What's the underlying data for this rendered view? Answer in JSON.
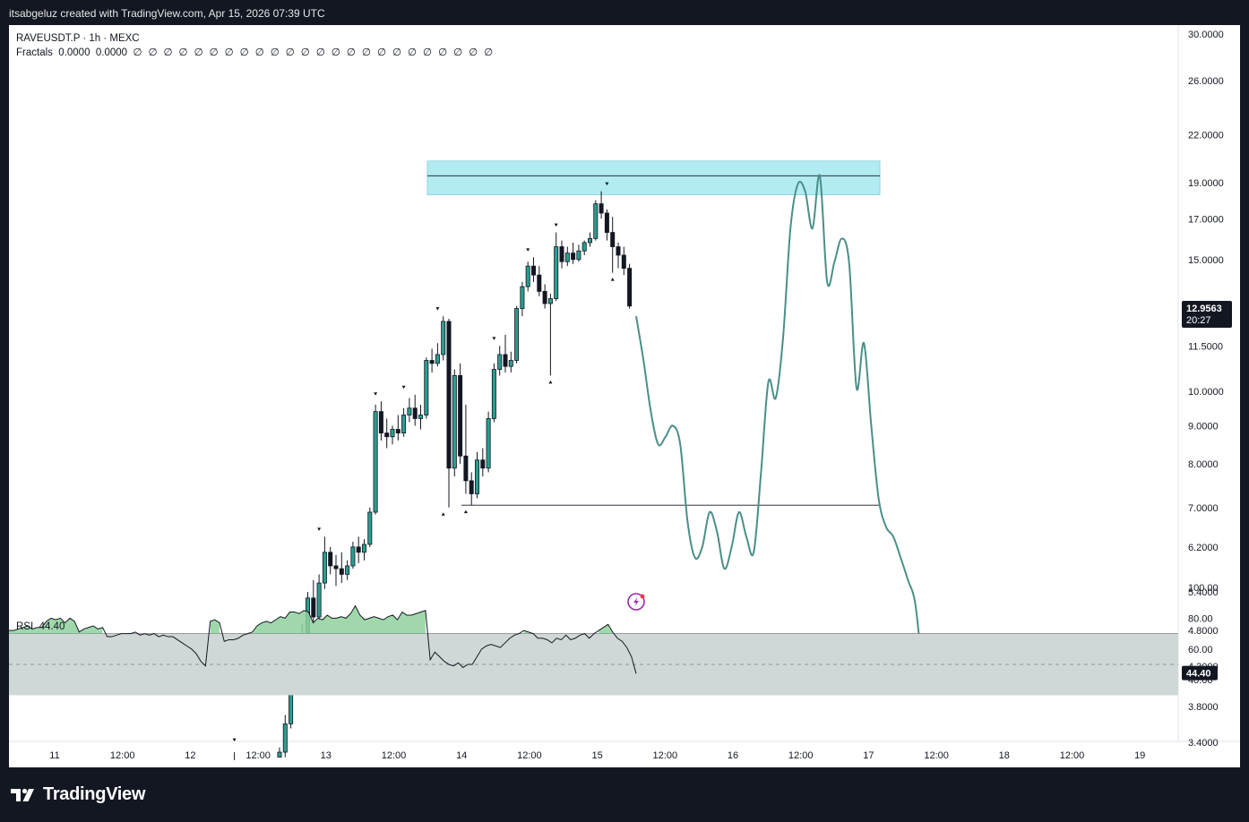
{
  "header": {
    "attribution": "itsabgeluz created with TradingView.com, Apr 15, 2026 07:39 UTC"
  },
  "legend": {
    "symbol": "RAVEUSDT.P · 1h · MEXC",
    "indicator_name": "Fractals",
    "indicator_values": [
      "0.0000",
      "0.0000"
    ],
    "empty_values": [
      "∅",
      "∅",
      "∅",
      "∅",
      "∅",
      "∅",
      "∅",
      "∅",
      "∅",
      "∅",
      "∅",
      "∅",
      "∅",
      "∅",
      "∅",
      "∅",
      "∅",
      "∅",
      "∅",
      "∅",
      "∅",
      "∅",
      "∅",
      "∅"
    ]
  },
  "rsi": {
    "label": "RSI",
    "value": "44.40"
  },
  "price_badge": {
    "price": "12.9563",
    "countdown": "20:27"
  },
  "branding": {
    "logo_text": "TradingView"
  },
  "colors": {
    "bull": "#26a69a",
    "bear": "#131722",
    "candle_fill_up": "#2a9d8f",
    "projection": "#4a8f88",
    "zone_fill": "#b2ebf2",
    "rsi_band": "#cfd8d6",
    "rsi_fill": "#8fd19e",
    "line": "#131722"
  },
  "chart_data": [
    {
      "type": "candlestick",
      "scale": "log",
      "y_ticks": [
        "30.0000",
        "26.0000",
        "22.0000",
        "19.0000",
        "17.0000",
        "15.0000",
        "11.5000",
        "10.0000",
        "9.0000",
        "8.0000",
        "7.0000",
        "6.2000",
        "5.4000",
        "4.8000",
        "4.3000",
        "3.8000",
        "3.4000"
      ],
      "x_ticks": [
        "11",
        "12:00",
        "12",
        "12:00",
        "13",
        "12:00",
        "14",
        "12:00",
        "15",
        "12:00",
        "16",
        "12:00",
        "17",
        "12:00",
        "18",
        "12:00",
        "19"
      ],
      "candles": [
        {
          "o": 3.25,
          "h": 3.35,
          "l": 3.25,
          "c": 3.3
        },
        {
          "o": 3.3,
          "h": 3.7,
          "l": 3.25,
          "c": 3.6
        },
        {
          "o": 3.6,
          "h": 4.5,
          "l": 3.55,
          "c": 4.35
        },
        {
          "o": 4.35,
          "h": 4.55,
          "l": 4.0,
          "c": 4.1
        },
        {
          "o": 4.1,
          "h": 4.9,
          "l": 4.05,
          "c": 4.75
        },
        {
          "o": 4.75,
          "h": 5.4,
          "l": 4.65,
          "c": 5.3
        },
        {
          "o": 5.3,
          "h": 5.6,
          "l": 4.9,
          "c": 5.0
        },
        {
          "o": 5.0,
          "h": 5.7,
          "l": 4.95,
          "c": 5.55
        },
        {
          "o": 5.55,
          "h": 6.4,
          "l": 5.45,
          "c": 6.1
        },
        {
          "o": 6.1,
          "h": 6.2,
          "l": 5.7,
          "c": 5.85
        },
        {
          "o": 5.85,
          "h": 6.05,
          "l": 5.5,
          "c": 5.8
        },
        {
          "o": 5.8,
          "h": 6.1,
          "l": 5.55,
          "c": 5.7
        },
        {
          "o": 5.7,
          "h": 5.95,
          "l": 5.6,
          "c": 5.85
        },
        {
          "o": 5.85,
          "h": 6.3,
          "l": 5.8,
          "c": 6.2
        },
        {
          "o": 6.2,
          "h": 6.4,
          "l": 5.9,
          "c": 6.1
        },
        {
          "o": 6.1,
          "h": 6.35,
          "l": 5.95,
          "c": 6.25
        },
        {
          "o": 6.25,
          "h": 7.0,
          "l": 6.2,
          "c": 6.9
        },
        {
          "o": 6.9,
          "h": 9.6,
          "l": 6.85,
          "c": 9.4
        },
        {
          "o": 9.4,
          "h": 9.7,
          "l": 8.6,
          "c": 8.8
        },
        {
          "o": 8.8,
          "h": 9.2,
          "l": 8.4,
          "c": 8.7
        },
        {
          "o": 8.7,
          "h": 9.0,
          "l": 8.5,
          "c": 8.9
        },
        {
          "o": 8.9,
          "h": 9.3,
          "l": 8.6,
          "c": 8.8
        },
        {
          "o": 8.8,
          "h": 9.5,
          "l": 8.7,
          "c": 9.3
        },
        {
          "o": 9.3,
          "h": 9.8,
          "l": 9.1,
          "c": 9.5
        },
        {
          "o": 9.5,
          "h": 9.9,
          "l": 9.0,
          "c": 9.2
        },
        {
          "o": 9.2,
          "h": 9.6,
          "l": 8.9,
          "c": 9.3
        },
        {
          "o": 9.3,
          "h": 11.1,
          "l": 9.2,
          "c": 11.0
        },
        {
          "o": 11.0,
          "h": 11.4,
          "l": 10.6,
          "c": 10.9
        },
        {
          "o": 10.9,
          "h": 11.6,
          "l": 10.8,
          "c": 11.2
        },
        {
          "o": 11.2,
          "h": 12.6,
          "l": 11.0,
          "c": 12.4
        },
        {
          "o": 12.4,
          "h": 12.5,
          "l": 7.0,
          "c": 7.9
        },
        {
          "o": 7.9,
          "h": 10.7,
          "l": 7.7,
          "c": 10.5
        },
        {
          "o": 10.5,
          "h": 10.9,
          "l": 8.0,
          "c": 8.2
        },
        {
          "o": 8.2,
          "h": 9.6,
          "l": 7.3,
          "c": 7.6
        },
        {
          "o": 7.6,
          "h": 7.8,
          "l": 7.05,
          "c": 7.3
        },
        {
          "o": 7.3,
          "h": 8.3,
          "l": 7.2,
          "c": 8.1
        },
        {
          "o": 8.1,
          "h": 8.4,
          "l": 7.7,
          "c": 7.9
        },
        {
          "o": 7.9,
          "h": 9.4,
          "l": 7.8,
          "c": 9.2
        },
        {
          "o": 9.2,
          "h": 10.9,
          "l": 9.1,
          "c": 10.7
        },
        {
          "o": 10.7,
          "h": 11.5,
          "l": 10.5,
          "c": 11.2
        },
        {
          "o": 11.2,
          "h": 11.9,
          "l": 10.6,
          "c": 10.8
        },
        {
          "o": 10.8,
          "h": 11.3,
          "l": 10.6,
          "c": 11.0
        },
        {
          "o": 11.0,
          "h": 13.0,
          "l": 10.9,
          "c": 12.9
        },
        {
          "o": 12.9,
          "h": 14.0,
          "l": 12.6,
          "c": 13.8
        },
        {
          "o": 13.8,
          "h": 14.9,
          "l": 13.6,
          "c": 14.7
        },
        {
          "o": 14.7,
          "h": 15.1,
          "l": 14.0,
          "c": 14.3
        },
        {
          "o": 14.3,
          "h": 14.7,
          "l": 13.4,
          "c": 13.6
        },
        {
          "o": 13.6,
          "h": 13.9,
          "l": 12.9,
          "c": 13.1
        },
        {
          "o": 13.1,
          "h": 13.5,
          "l": 10.5,
          "c": 13.3
        },
        {
          "o": 13.3,
          "h": 16.3,
          "l": 13.2,
          "c": 15.6
        },
        {
          "o": 15.6,
          "h": 15.9,
          "l": 14.6,
          "c": 14.9
        },
        {
          "o": 14.9,
          "h": 15.6,
          "l": 14.7,
          "c": 15.3
        },
        {
          "o": 15.3,
          "h": 15.8,
          "l": 14.8,
          "c": 15.0
        },
        {
          "o": 15.0,
          "h": 15.7,
          "l": 14.9,
          "c": 15.4
        },
        {
          "o": 15.4,
          "h": 15.9,
          "l": 15.2,
          "c": 15.8
        },
        {
          "o": 15.8,
          "h": 16.3,
          "l": 15.6,
          "c": 16.0
        },
        {
          "o": 16.0,
          "h": 18.0,
          "l": 15.9,
          "c": 17.8
        },
        {
          "o": 17.8,
          "h": 18.5,
          "l": 17.0,
          "c": 17.3
        },
        {
          "o": 17.3,
          "h": 17.5,
          "l": 15.9,
          "c": 16.3
        },
        {
          "o": 16.3,
          "h": 17.1,
          "l": 14.4,
          "c": 15.6
        },
        {
          "o": 15.6,
          "h": 15.8,
          "l": 14.6,
          "c": 15.2
        },
        {
          "o": 15.2,
          "h": 15.6,
          "l": 14.3,
          "c": 14.6
        },
        {
          "o": 14.6,
          "h": 14.8,
          "l": 12.9,
          "c": 13.0
        }
      ],
      "projection": [
        [
          0,
          12.6
        ],
        [
          1,
          11.0
        ],
        [
          2,
          9.4
        ],
        [
          3,
          8.5
        ],
        [
          4,
          8.7
        ],
        [
          5,
          9.0
        ],
        [
          6,
          8.5
        ],
        [
          7,
          6.7
        ],
        [
          8,
          6.0
        ],
        [
          9,
          6.2
        ],
        [
          10,
          6.9
        ],
        [
          11,
          6.5
        ],
        [
          12,
          5.8
        ],
        [
          13,
          6.2
        ],
        [
          14,
          6.9
        ],
        [
          15,
          6.4
        ],
        [
          16,
          6.1
        ],
        [
          17,
          7.8
        ],
        [
          18,
          10.3
        ],
        [
          19,
          9.8
        ],
        [
          20,
          11.8
        ],
        [
          21,
          16.5
        ],
        [
          22,
          18.9
        ],
        [
          23,
          18.5
        ],
        [
          24,
          16.5
        ],
        [
          25,
          19.4
        ],
        [
          26,
          14.0
        ],
        [
          27,
          14.9
        ],
        [
          28,
          16.0
        ],
        [
          29,
          14.8
        ],
        [
          30,
          10.1
        ],
        [
          31,
          11.6
        ],
        [
          32,
          9.0
        ],
        [
          33,
          7.2
        ],
        [
          34,
          6.6
        ],
        [
          35,
          6.4
        ],
        [
          36,
          6.0
        ],
        [
          37,
          5.6
        ],
        [
          38,
          5.2
        ],
        [
          39,
          4.2
        ]
      ],
      "resistance_zone": [
        18.3,
        20.3
      ],
      "resistance_line": 19.4,
      "support_line": 7.05
    },
    {
      "type": "line",
      "name": "RSI",
      "y_ticks": [
        "100.00",
        "80.00",
        "60.00",
        "40.00"
      ],
      "band": [
        30,
        70
      ],
      "midline": 50,
      "values": [
        72,
        72,
        73,
        74,
        75,
        73,
        74,
        74,
        78,
        80,
        79,
        80,
        77,
        80,
        78,
        71,
        73,
        74,
        75,
        73,
        74,
        68,
        68,
        69,
        70,
        70,
        70,
        71,
        69,
        70,
        69,
        70,
        68,
        69,
        68,
        68,
        66,
        64,
        62,
        60,
        57,
        52,
        49,
        78,
        79,
        77,
        65,
        66,
        66,
        67,
        69,
        70,
        71,
        75,
        77,
        78,
        77,
        79,
        81,
        80,
        84,
        84,
        83,
        85,
        84,
        77,
        80,
        79,
        82,
        80,
        80,
        81,
        80,
        83,
        88,
        82,
        79,
        80,
        81,
        80,
        79,
        81,
        82,
        79,
        84,
        82,
        82,
        83,
        84,
        85,
        53,
        58,
        55,
        52,
        50,
        49,
        51,
        48,
        50,
        50,
        55,
        60,
        62,
        63,
        62,
        61,
        64,
        67,
        69,
        70,
        72,
        71,
        70,
        67,
        67,
        66,
        64,
        67,
        66,
        69,
        66,
        67,
        69,
        70,
        67,
        70,
        72,
        74,
        76,
        71,
        67,
        65,
        61,
        55,
        44
      ]
    }
  ]
}
